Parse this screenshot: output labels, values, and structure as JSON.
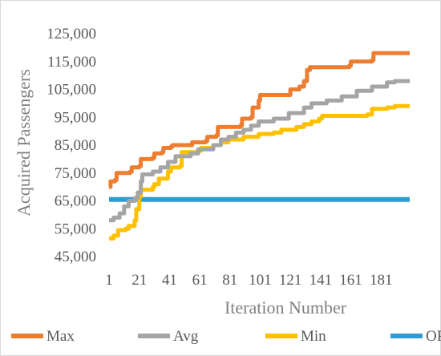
{
  "chart_data": {
    "type": "line",
    "title": "",
    "xlabel": "Iteration Number",
    "ylabel": "Acquired Passengers",
    "xlim": [
      1,
      200
    ],
    "ylim": [
      45000,
      125000
    ],
    "x_ticks": [
      1,
      21,
      41,
      61,
      81,
      101,
      121,
      141,
      161,
      181
    ],
    "x_tick_labels": [
      "1",
      "21",
      "41",
      "61",
      "81",
      "101",
      "121",
      "141",
      "161",
      "181"
    ],
    "y_ticks": [
      45000,
      55000,
      65000,
      75000,
      85000,
      95000,
      105000,
      115000,
      125000
    ],
    "y_tick_labels": [
      "45,000",
      "55,000",
      "65,000",
      "75,000",
      "85,000",
      "95,000",
      "105,000",
      "115,000",
      "125,000"
    ],
    "grid": false,
    "legend": "bottom",
    "series": [
      {
        "name": "Max",
        "color": "#ed7d31",
        "points": [
          [
            1,
            70000
          ],
          [
            2,
            72000
          ],
          [
            5,
            72500
          ],
          [
            6,
            75000
          ],
          [
            15,
            75500
          ],
          [
            16,
            77000
          ],
          [
            21,
            77500
          ],
          [
            22,
            80000
          ],
          [
            30,
            80500
          ],
          [
            31,
            82000
          ],
          [
            36,
            82500
          ],
          [
            37,
            84000
          ],
          [
            42,
            84500
          ],
          [
            43,
            85000
          ],
          [
            55,
            85000
          ],
          [
            56,
            86000
          ],
          [
            65,
            86500
          ],
          [
            66,
            88000
          ],
          [
            72,
            88500
          ],
          [
            73,
            91500
          ],
          [
            88,
            92000
          ],
          [
            89,
            94500
          ],
          [
            95,
            95000
          ],
          [
            96,
            98500
          ],
          [
            100,
            101000
          ],
          [
            101,
            103000
          ],
          [
            120,
            103000
          ],
          [
            121,
            105000
          ],
          [
            127,
            106000
          ],
          [
            130,
            108000
          ],
          [
            132,
            112000
          ],
          [
            134,
            113000
          ],
          [
            160,
            113500
          ],
          [
            161,
            115000
          ],
          [
            175,
            115500
          ],
          [
            176,
            118000
          ],
          [
            200,
            118000
          ]
        ]
      },
      {
        "name": "Avg",
        "color": "#a5a5a5",
        "points": [
          [
            1,
            58000
          ],
          [
            4,
            59000
          ],
          [
            8,
            60500
          ],
          [
            11,
            63000
          ],
          [
            14,
            65000
          ],
          [
            18,
            66000
          ],
          [
            20,
            68000
          ],
          [
            22,
            72000
          ],
          [
            23,
            74500
          ],
          [
            30,
            75500
          ],
          [
            35,
            77000
          ],
          [
            40,
            79000
          ],
          [
            45,
            81000
          ],
          [
            55,
            82000
          ],
          [
            60,
            83500
          ],
          [
            70,
            85000
          ],
          [
            75,
            87000
          ],
          [
            80,
            88000
          ],
          [
            85,
            89500
          ],
          [
            90,
            90500
          ],
          [
            95,
            92000
          ],
          [
            100,
            93500
          ],
          [
            110,
            94500
          ],
          [
            120,
            96500
          ],
          [
            130,
            98500
          ],
          [
            135,
            100000
          ],
          [
            145,
            101000
          ],
          [
            155,
            102500
          ],
          [
            165,
            104500
          ],
          [
            175,
            106000
          ],
          [
            185,
            107500
          ],
          [
            190,
            108000
          ],
          [
            200,
            108000
          ]
        ]
      },
      {
        "name": "Min",
        "color": "#ffc000",
        "points": [
          [
            1,
            51500
          ],
          [
            4,
            52500
          ],
          [
            7,
            54500
          ],
          [
            12,
            55000
          ],
          [
            14,
            56000
          ],
          [
            18,
            58000
          ],
          [
            19,
            62000
          ],
          [
            21,
            66500
          ],
          [
            22,
            69000
          ],
          [
            30,
            70000
          ],
          [
            31,
            71000
          ],
          [
            34,
            73000
          ],
          [
            40,
            75500
          ],
          [
            42,
            77000
          ],
          [
            48,
            77500
          ],
          [
            49,
            82500
          ],
          [
            60,
            83000
          ],
          [
            62,
            84000
          ],
          [
            70,
            85000
          ],
          [
            75,
            86000
          ],
          [
            80,
            87000
          ],
          [
            90,
            88000
          ],
          [
            100,
            89000
          ],
          [
            110,
            89500
          ],
          [
            115,
            90500
          ],
          [
            125,
            91500
          ],
          [
            130,
            92500
          ],
          [
            135,
            93500
          ],
          [
            140,
            94500
          ],
          [
            142,
            95500
          ],
          [
            165,
            95500
          ],
          [
            172,
            96000
          ],
          [
            175,
            98000
          ],
          [
            185,
            98500
          ],
          [
            190,
            99000
          ],
          [
            200,
            99000
          ]
        ]
      },
      {
        "name": "OP",
        "color": "#2e9bd6",
        "points": [
          [
            1,
            65500
          ],
          [
            200,
            65500
          ]
        ]
      }
    ]
  }
}
